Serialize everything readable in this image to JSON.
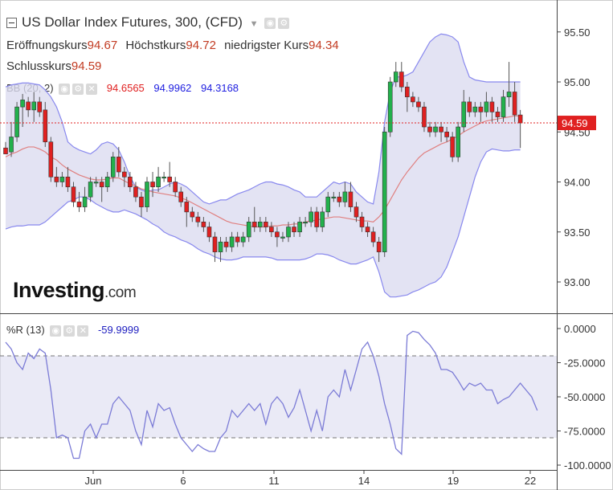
{
  "header": {
    "title": "US Dollar Index Futures, 300, (CFD)",
    "open_label": "Eröffnungskurs",
    "open": "94.67",
    "high_label": "Höchstkurs",
    "high": "94.72",
    "low_label": "niedrigster Kurs",
    "low": "94.34",
    "close_label": "Schlusskurs",
    "close": "94.59"
  },
  "bb": {
    "label": "BB (20, 2)",
    "mid": "94.6565",
    "upper": "94.9962",
    "lower": "94.3168"
  },
  "wr": {
    "label": "%R (13)",
    "value": "-59.9999"
  },
  "logo": {
    "brand": "Investing",
    "suffix": ".com"
  },
  "price_badge": "94.59",
  "colors": {
    "up": "#22b14c",
    "down": "#e02020",
    "band_fill": "#dcdcf0",
    "band_line": "#8888ee",
    "mid_line": "#e08080",
    "wr_line": "#7b7bd6",
    "price_line": "#e02020"
  },
  "chart_data": [
    {
      "type": "candlestick",
      "y_ticks": [
        "95.50",
        "95.00",
        "94.50",
        "94.00",
        "93.50",
        "93.00"
      ],
      "x_ticks": [
        "Jun",
        "6",
        "11",
        "14",
        "19",
        "22"
      ],
      "ylim": [
        92.78,
        95.75
      ],
      "last_price": 94.59,
      "candles": [
        [
          94.34,
          94.28,
          94.3,
          94.4
        ],
        [
          94.3,
          94.45,
          94.25,
          94.6
        ],
        [
          94.45,
          94.75,
          94.4,
          94.8
        ],
        [
          94.75,
          94.82,
          94.55,
          94.88
        ],
        [
          94.8,
          94.72,
          94.65,
          94.85
        ],
        [
          94.72,
          94.8,
          94.6,
          94.9
        ],
        [
          94.8,
          94.7,
          94.65,
          94.85
        ],
        [
          94.72,
          94.4,
          94.35,
          94.8
        ],
        [
          94.4,
          94.05,
          94.0,
          94.45
        ],
        [
          94.05,
          94.0,
          93.95,
          94.15
        ],
        [
          94.0,
          94.05,
          93.95,
          94.1
        ],
        [
          94.05,
          93.95,
          93.9,
          94.15
        ],
        [
          93.95,
          93.8,
          93.75,
          94.0
        ],
        [
          93.8,
          93.75,
          93.7,
          93.9
        ],
        [
          93.75,
          93.85,
          93.7,
          93.95
        ],
        [
          93.85,
          94.0,
          93.8,
          94.05
        ],
        [
          94.0,
          94.0,
          93.95,
          94.05
        ],
        [
          94.0,
          93.95,
          93.8,
          94.05
        ],
        [
          93.95,
          94.05,
          93.9,
          94.1
        ],
        [
          94.05,
          94.25,
          94.0,
          94.3
        ],
        [
          94.25,
          94.1,
          94.05,
          94.35
        ],
        [
          94.1,
          94.05,
          93.95,
          94.15
        ],
        [
          94.05,
          93.95,
          93.9,
          94.1
        ],
        [
          93.95,
          93.85,
          93.8,
          94.0
        ],
        [
          93.85,
          93.75,
          93.65,
          93.9
        ],
        [
          93.75,
          94.0,
          93.7,
          94.05
        ],
        [
          94.0,
          93.95,
          93.85,
          94.1
        ],
        [
          93.95,
          94.05,
          93.9,
          94.15
        ],
        [
          94.05,
          94.05,
          94.0,
          94.1
        ],
        [
          94.05,
          94.0,
          93.95,
          94.2
        ],
        [
          94.0,
          93.9,
          93.85,
          94.05
        ],
        [
          93.9,
          93.8,
          93.75,
          93.95
        ],
        [
          93.8,
          93.7,
          93.55,
          93.85
        ],
        [
          93.7,
          93.65,
          93.6,
          93.75
        ],
        [
          93.65,
          93.6,
          93.55,
          93.7
        ],
        [
          93.6,
          93.55,
          93.5,
          93.65
        ],
        [
          93.55,
          93.45,
          93.4,
          93.6
        ],
        [
          93.45,
          93.3,
          93.2,
          93.5
        ],
        [
          93.3,
          93.4,
          93.2,
          93.45
        ],
        [
          93.4,
          93.35,
          93.3,
          93.45
        ],
        [
          93.35,
          93.45,
          93.3,
          93.5
        ],
        [
          93.45,
          93.4,
          93.35,
          93.5
        ],
        [
          93.4,
          93.45,
          93.35,
          93.5
        ],
        [
          93.45,
          93.6,
          93.4,
          93.65
        ],
        [
          93.6,
          93.55,
          93.5,
          93.75
        ],
        [
          93.55,
          93.6,
          93.5,
          93.65
        ],
        [
          93.6,
          93.55,
          93.5,
          93.65
        ],
        [
          93.55,
          93.5,
          93.45,
          93.6
        ],
        [
          93.5,
          93.45,
          93.35,
          93.55
        ],
        [
          93.45,
          93.45,
          93.4,
          93.5
        ],
        [
          93.45,
          93.55,
          93.4,
          93.6
        ],
        [
          93.55,
          93.5,
          93.45,
          93.6
        ],
        [
          93.5,
          93.6,
          93.45,
          93.65
        ],
        [
          93.6,
          93.6,
          93.55,
          93.65
        ],
        [
          93.6,
          93.7,
          93.55,
          93.75
        ],
        [
          93.7,
          93.55,
          93.5,
          93.75
        ],
        [
          93.55,
          93.7,
          93.5,
          93.75
        ],
        [
          93.7,
          93.85,
          93.65,
          93.9
        ],
        [
          93.85,
          93.85,
          93.8,
          93.9
        ],
        [
          93.85,
          93.8,
          93.75,
          93.9
        ],
        [
          93.8,
          93.9,
          93.75,
          94.0
        ],
        [
          93.9,
          93.75,
          93.7,
          94.0
        ],
        [
          93.75,
          93.65,
          93.6,
          93.8
        ],
        [
          93.65,
          93.55,
          93.5,
          93.7
        ],
        [
          93.55,
          93.5,
          93.45,
          93.6
        ],
        [
          93.5,
          93.4,
          93.35,
          93.55
        ],
        [
          93.4,
          93.3,
          93.2,
          93.45
        ],
        [
          93.3,
          94.5,
          93.25,
          94.55
        ],
        [
          94.5,
          95.0,
          94.45,
          95.05
        ],
        [
          95.0,
          95.1,
          94.95,
          95.2
        ],
        [
          95.1,
          94.95,
          94.9,
          95.2
        ],
        [
          94.95,
          94.85,
          94.7,
          95.0
        ],
        [
          94.85,
          94.8,
          94.75,
          94.9
        ],
        [
          94.8,
          94.75,
          94.7,
          94.85
        ],
        [
          94.75,
          94.55,
          94.5,
          94.8
        ],
        [
          94.55,
          94.5,
          94.45,
          94.6
        ],
        [
          94.5,
          94.55,
          94.45,
          94.6
        ],
        [
          94.55,
          94.5,
          94.4,
          94.6
        ],
        [
          94.5,
          94.45,
          94.4,
          94.55
        ],
        [
          94.45,
          94.25,
          94.2,
          94.5
        ],
        [
          94.25,
          94.55,
          94.2,
          94.6
        ],
        [
          94.55,
          94.8,
          94.5,
          94.92
        ],
        [
          94.8,
          94.7,
          94.65,
          94.85
        ],
        [
          94.7,
          94.75,
          94.65,
          94.8
        ],
        [
          94.75,
          94.7,
          94.6,
          94.8
        ],
        [
          94.7,
          94.8,
          94.65,
          94.9
        ],
        [
          94.8,
          94.7,
          94.6,
          94.85
        ],
        [
          94.7,
          94.65,
          94.6,
          94.75
        ],
        [
          94.65,
          94.85,
          94.6,
          94.92
        ],
        [
          94.85,
          94.9,
          94.75,
          95.2
        ],
        [
          94.9,
          94.67,
          94.6,
          95.0
        ],
        [
          94.67,
          94.59,
          94.34,
          94.72
        ]
      ],
      "bb_upper": [
        94.95,
        94.97,
        94.98,
        94.99,
        94.99,
        94.98,
        94.97,
        94.92,
        94.85,
        94.75,
        94.6,
        94.4,
        94.35,
        94.32,
        94.3,
        94.28,
        94.32,
        94.38,
        94.4,
        94.38,
        94.32,
        94.2,
        94.05,
        93.95,
        93.92,
        93.9,
        93.92,
        93.92,
        93.95,
        93.98,
        94.0,
        93.98,
        93.95,
        93.9,
        93.85,
        93.8,
        93.78,
        93.8,
        93.82,
        93.82,
        93.85,
        93.88,
        93.9,
        93.92,
        93.95,
        93.98,
        94.0,
        94.0,
        93.98,
        93.97,
        93.95,
        93.92,
        93.9,
        93.85,
        93.85,
        93.85,
        93.9,
        93.95,
        94.0,
        93.98,
        94.0,
        93.98,
        93.9,
        93.85,
        93.8,
        93.78,
        94.1,
        94.6,
        94.9,
        95.05,
        95.05,
        95.07,
        95.1,
        95.2,
        95.3,
        95.4,
        95.45,
        95.48,
        95.47,
        95.45,
        95.4,
        95.2,
        95.05,
        95.02,
        95.01,
        95.0,
        95.0,
        95.0,
        95.0,
        95.0,
        95.0,
        95.0
      ],
      "bb_mid": [
        94.25,
        94.28,
        94.3,
        94.33,
        94.35,
        94.35,
        94.33,
        94.3,
        94.25,
        94.22,
        94.17,
        94.13,
        94.1,
        94.07,
        94.05,
        94.03,
        94.02,
        94.02,
        94.03,
        94.04,
        94.04,
        94.01,
        93.98,
        93.96,
        93.93,
        93.92,
        93.9,
        93.89,
        93.88,
        93.87,
        93.86,
        93.84,
        93.82,
        93.79,
        93.76,
        93.73,
        93.7,
        93.67,
        93.64,
        93.61,
        93.59,
        93.58,
        93.57,
        93.56,
        93.55,
        93.55,
        93.55,
        93.56,
        93.56,
        93.57,
        93.57,
        93.58,
        93.58,
        93.6,
        93.61,
        93.62,
        93.63,
        93.64,
        93.65,
        93.65,
        93.64,
        93.63,
        93.62,
        93.61,
        93.61,
        93.6,
        93.65,
        93.72,
        93.82,
        93.92,
        94.02,
        94.1,
        94.17,
        94.24,
        94.29,
        94.32,
        94.35,
        94.38,
        94.4,
        94.43,
        94.46,
        94.5,
        94.53,
        94.56,
        94.59,
        94.61,
        94.62,
        94.63,
        94.64,
        94.65,
        94.66,
        94.66
      ],
      "bb_lower": [
        93.53,
        93.55,
        93.56,
        93.56,
        93.57,
        93.57,
        93.57,
        93.6,
        93.65,
        93.7,
        93.75,
        93.8,
        93.82,
        93.85,
        93.85,
        93.82,
        93.78,
        93.75,
        93.72,
        93.7,
        93.7,
        93.72,
        93.7,
        93.68,
        93.65,
        93.62,
        93.58,
        93.55,
        93.5,
        93.47,
        93.45,
        93.42,
        93.4,
        93.37,
        93.33,
        93.3,
        93.28,
        93.25,
        93.23,
        93.22,
        93.22,
        93.23,
        93.25,
        93.25,
        93.25,
        93.25,
        93.25,
        93.24,
        93.22,
        93.22,
        93.22,
        93.22,
        93.22,
        93.23,
        93.25,
        93.28,
        93.28,
        93.27,
        93.25,
        93.22,
        93.2,
        93.18,
        93.18,
        93.2,
        93.22,
        93.25,
        93.1,
        92.9,
        92.85,
        92.85,
        92.86,
        92.87,
        92.9,
        92.92,
        92.95,
        92.98,
        93.0,
        93.05,
        93.15,
        93.3,
        93.45,
        93.65,
        93.85,
        94.05,
        94.2,
        94.3,
        94.33,
        94.32,
        94.31,
        94.31,
        94.32,
        94.32
      ]
    },
    {
      "type": "line",
      "name": "%R (13)",
      "y_ticks": [
        "0.0000",
        "-25.0000",
        "-50.0000",
        "-75.0000",
        "-100.0000"
      ],
      "ylim": [
        -100,
        0
      ],
      "levels": [
        -20,
        -80
      ],
      "values": [
        -10,
        -15,
        -25,
        -30,
        -18,
        -22,
        -15,
        -18,
        -45,
        -80,
        -78,
        -80,
        -95,
        -95,
        -75,
        -70,
        -80,
        -70,
        -70,
        -55,
        -50,
        -55,
        -60,
        -75,
        -85,
        -60,
        -72,
        -55,
        -60,
        -58,
        -70,
        -80,
        -85,
        -90,
        -85,
        -88,
        -90,
        -90,
        -80,
        -75,
        -60,
        -65,
        -60,
        -55,
        -60,
        -55,
        -70,
        -55,
        -50,
        -55,
        -65,
        -58,
        -45,
        -60,
        -75,
        -60,
        -75,
        -50,
        -45,
        -50,
        -30,
        -45,
        -30,
        -15,
        -10,
        -20,
        -35,
        -55,
        -70,
        -88,
        -92,
        -5,
        -2,
        -3,
        -8,
        -12,
        -18,
        -30,
        -30,
        -32,
        -38,
        -45,
        -40,
        -42,
        -40,
        -45,
        -45,
        -55,
        -52,
        -50,
        -45,
        -40,
        -45,
        -50,
        -60
      ]
    }
  ]
}
